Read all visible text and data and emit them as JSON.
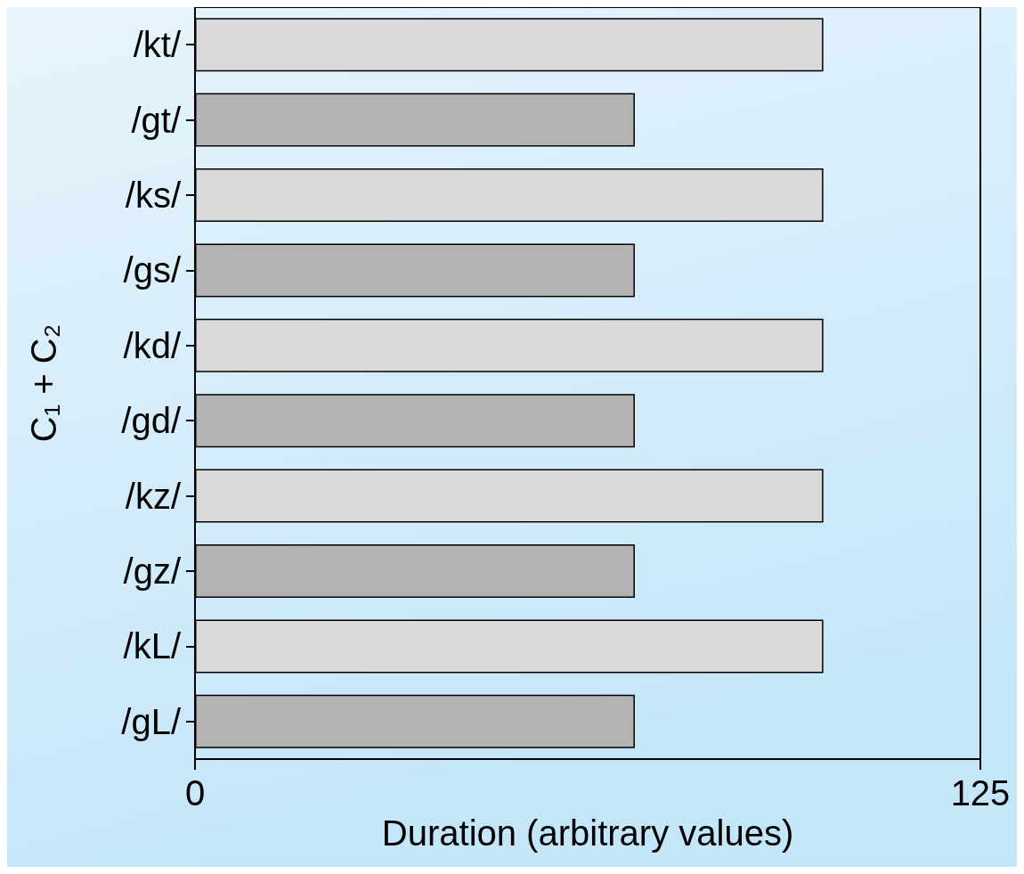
{
  "chart_data": {
    "type": "bar",
    "orientation": "horizontal",
    "xlabel": "Duration (arbitrary values)",
    "ylabel": "C₁ + C₂",
    "categories": [
      "/kt/",
      "/gt/",
      "/ks/",
      "/gs/",
      "/kd/",
      "/gd/",
      "/kz/",
      "/gz/",
      "/kL/",
      "/gL/"
    ],
    "values": [
      100,
      70,
      100,
      70,
      100,
      70,
      100,
      70,
      100,
      70
    ],
    "colors": [
      "#d9d9d9",
      "#b3b3b3",
      "#d9d9d9",
      "#b3b3b3",
      "#d9d9d9",
      "#b3b3b3",
      "#d9d9d9",
      "#b3b3b3",
      "#d9d9d9",
      "#b3b3b3"
    ],
    "xlim": [
      0,
      125
    ],
    "xticks": [
      0,
      125
    ],
    "grid": false
  }
}
